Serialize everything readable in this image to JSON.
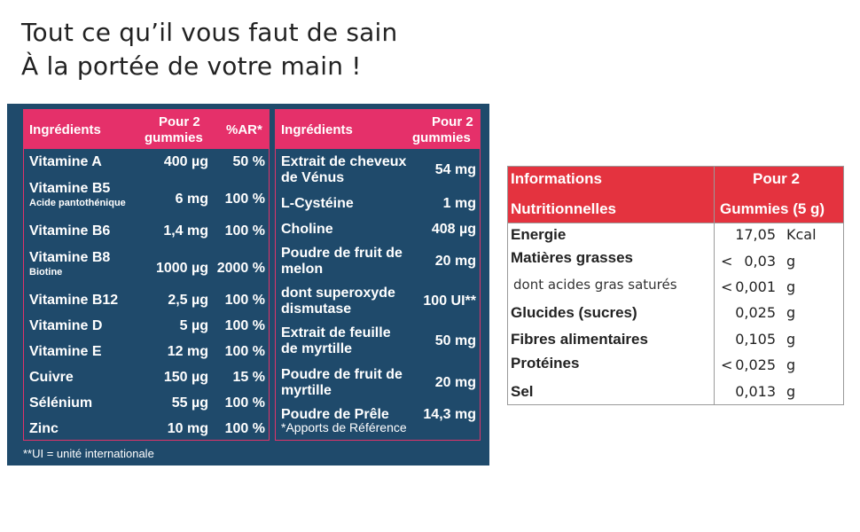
{
  "headline": {
    "line1": "Tout ce qu’il vous faut de sain",
    "line2": "À la portée de votre main !"
  },
  "left_table": {
    "headers": {
      "ingredient": "Ingrédients",
      "amount_line1": "Pour 2",
      "amount_line2": "gummies",
      "ar": "%AR*"
    },
    "rows": [
      {
        "name": "Vitamine A",
        "sub": "",
        "amount": "400 µg",
        "ar": "50 %"
      },
      {
        "name": "Vitamine B5",
        "sub": "Acide pantothénique",
        "amount": "6 mg",
        "ar": "100 %"
      },
      {
        "name": "Vitamine B6",
        "sub": "",
        "amount": "1,4 mg",
        "ar": "100 %"
      },
      {
        "name": "Vitamine B8",
        "sub": "Biotine",
        "amount": "1000 µg",
        "ar": "2000 %"
      },
      {
        "name": "Vitamine B12",
        "sub": "",
        "amount": "2,5 µg",
        "ar": "100 %"
      },
      {
        "name": "Vitamine D",
        "sub": "",
        "amount": "5 µg",
        "ar": "100 %"
      },
      {
        "name": "Vitamine E",
        "sub": "",
        "amount": "12 mg",
        "ar": "100 %"
      },
      {
        "name": "Cuivre",
        "sub": "",
        "amount": "150 µg",
        "ar": "15 %"
      },
      {
        "name": "Sélénium",
        "sub": "",
        "amount": "55 µg",
        "ar": "100 %"
      },
      {
        "name": "Zinc",
        "sub": "",
        "amount": "10 mg",
        "ar": "100 %"
      }
    ]
  },
  "right_table": {
    "headers": {
      "ingredient": "Ingrédients",
      "amount_line1": "Pour 2",
      "amount_line2": "gummies"
    },
    "rows": [
      {
        "name1": "Extrait de cheveux",
        "name2": "de Vénus",
        "amount": "54 mg"
      },
      {
        "name1": "L-Cystéine",
        "name2": "",
        "amount": "1 mg"
      },
      {
        "name1": "Choline",
        "name2": "",
        "amount": "408 µg"
      },
      {
        "name1": "Poudre de fruit de",
        "name2": "melon",
        "amount": "20 mg"
      },
      {
        "name1": "dont superoxyde",
        "name2": "dismutase",
        "amount": "100 UI**"
      },
      {
        "name1": "Extrait de feuille",
        "name2": "de myrtille",
        "amount": "50 mg"
      },
      {
        "name1": "Poudre de fruit de",
        "name2": "myrtille",
        "amount": "20 mg"
      },
      {
        "name1": "Poudre de Prêle",
        "name2": "",
        "amount": "14,3 mg"
      }
    ],
    "note": "*Apports de Référence"
  },
  "footnote": "**UI = unité internationale",
  "nutrition": {
    "header_left1": "Informations",
    "header_left2": "Nutritionnelles",
    "header_right1": "Pour 2",
    "header_right2": "Gummies (5 g)",
    "rows": [
      {
        "label": "Energie",
        "prefix": "",
        "value": "17,05",
        "unit": "Kcal"
      },
      {
        "label": "Matières grasses",
        "prefix": "<",
        "value": "0,03",
        "unit": "g"
      },
      {
        "label": "dont acides gras saturés",
        "prefix": "<",
        "value": "0,001",
        "unit": "g"
      },
      {
        "label": "Glucides (sucres)",
        "prefix": "",
        "value": "0,025",
        "unit": "g"
      },
      {
        "label": "Fibres alimentaires",
        "prefix": "",
        "value": "0,105",
        "unit": "g"
      },
      {
        "label": "Protéines",
        "prefix": "<",
        "value": "0,025",
        "unit": "g"
      },
      {
        "label": "Sel",
        "prefix": "",
        "value": "0,013",
        "unit": "g"
      }
    ]
  },
  "colors": {
    "panel_blue": "#1f4a6b",
    "pink": "#e5306a",
    "red_header": "#e4333f"
  }
}
